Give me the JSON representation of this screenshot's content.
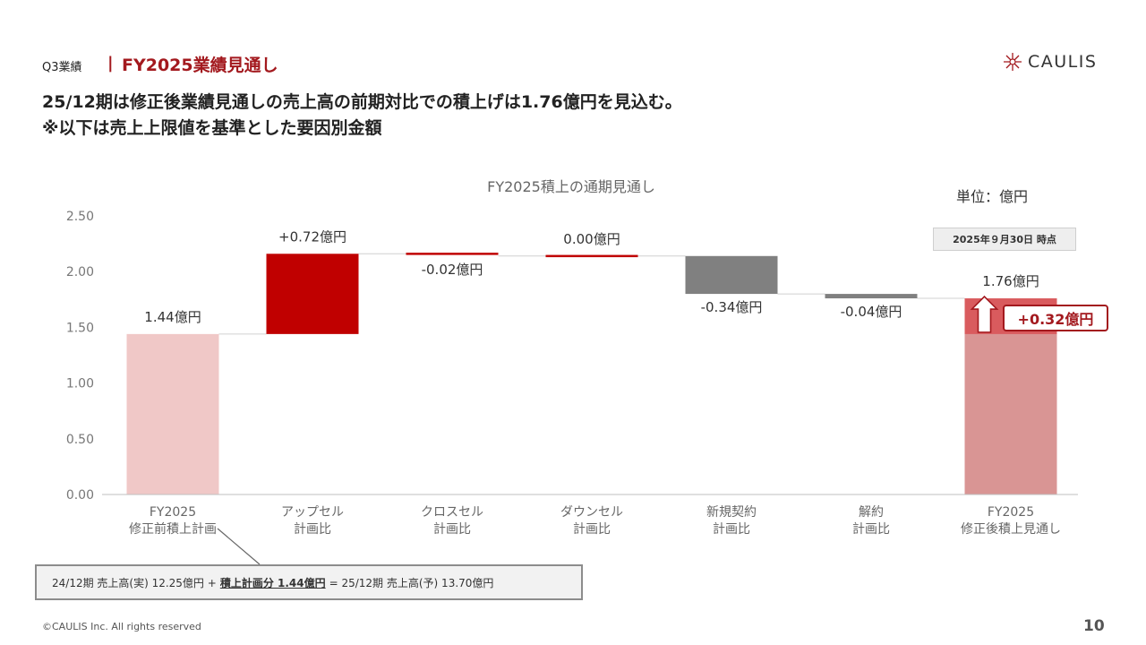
{
  "header": {
    "section": "Q3業績",
    "separator": "|",
    "title": "FY2025業績見通し",
    "logo_text": "CAULIS"
  },
  "headline": {
    "line1": "25/12期は修正後業績見通しの売上高の前期対比での積上げは1.76億円を見込む。",
    "line2": "※以下は売上上限値を基準とした要因別金額"
  },
  "unit_label": "単位：億円",
  "as_of_label": "2025年９月30日 時点",
  "callout_label": "+0.32億円",
  "chart_data": {
    "type": "bar",
    "subtype": "waterfall",
    "title": "FY2025積上の通期見通し",
    "ylim": [
      0,
      2.5
    ],
    "yticks": [
      "0.00",
      "0.50",
      "1.00",
      "1.50",
      "2.00",
      "2.50"
    ],
    "grid": false,
    "categories": [
      [
        "FY2025",
        "修正前積上計画"
      ],
      [
        "アップセル",
        "計画比"
      ],
      [
        "クロスセル",
        "計画比"
      ],
      [
        "ダウンセル",
        "計画比"
      ],
      [
        "新規契約",
        "計画比"
      ],
      [
        "解約",
        "計画比"
      ],
      [
        "FY2025",
        "修正後積上見通し"
      ]
    ],
    "bars": [
      {
        "kind": "total",
        "start": 0,
        "end": 1.44,
        "label": "1.44億円",
        "color": "#f0c8c7"
      },
      {
        "kind": "delta",
        "start": 1.44,
        "end": 2.16,
        "label": "+0.72億円",
        "color": "#c00000"
      },
      {
        "kind": "delta",
        "start": 2.16,
        "end": 2.14,
        "label": "-0.02億円",
        "color": "#c00000"
      },
      {
        "kind": "delta",
        "start": 2.14,
        "end": 2.14,
        "label": "0.00億円",
        "color": "#c00000"
      },
      {
        "kind": "delta",
        "start": 2.14,
        "end": 1.8,
        "label": "-0.34億円",
        "color": "#808080"
      },
      {
        "kind": "delta",
        "start": 1.8,
        "end": 1.76,
        "label": "-0.04億円",
        "color": "#808080"
      },
      {
        "kind": "total",
        "start": 0,
        "end": 1.76,
        "label": "1.76億円",
        "color": "#d99594",
        "highlight": {
          "start": 1.44,
          "end": 1.76,
          "color": "#d95b5e"
        }
      }
    ]
  },
  "note": {
    "part1": "24/12期 売上高(実) 12.25億円 +",
    "emphasis": "積上計画分 1.44億円",
    "part2": "= 25/12期 売上高(予) 13.70億円"
  },
  "footer": {
    "copyright": "©CAULIS Inc. All rights reserved",
    "page_number": "10"
  }
}
